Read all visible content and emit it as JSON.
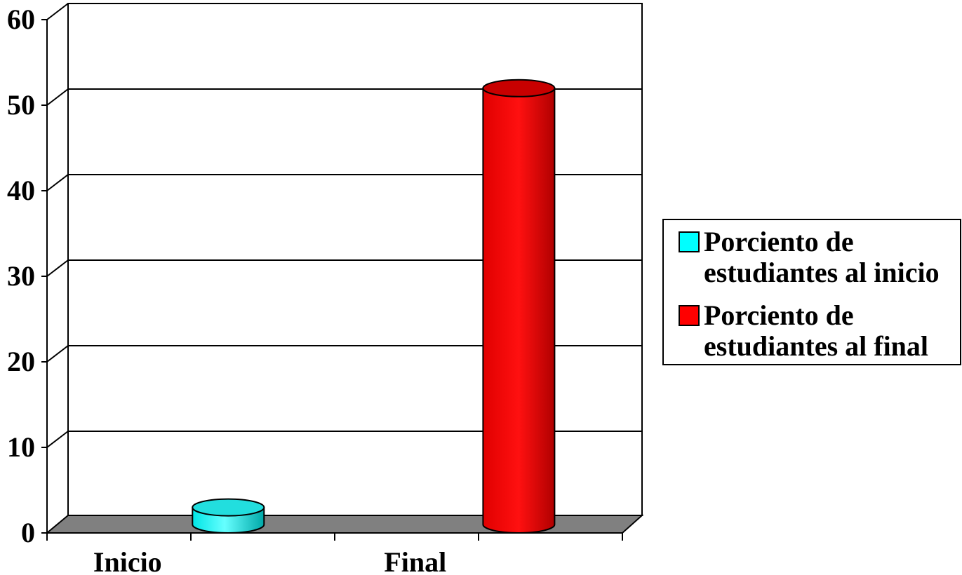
{
  "chart_data": {
    "type": "bar",
    "categories": [
      "Inicio",
      "Final"
    ],
    "series": [
      {
        "name": "Porciento de estudiantes al inicio",
        "values": [
          2,
          null
        ],
        "color": "#00ffff"
      },
      {
        "name": "Porciento de estudiantes al final",
        "values": [
          null,
          51
        ],
        "color": "#ff0000"
      }
    ],
    "yticks": [
      "0",
      "10",
      "20",
      "30",
      "40",
      "50",
      "60"
    ],
    "ylim": [
      0,
      60
    ],
    "grid": true,
    "legend": {
      "placement": "right",
      "items": [
        {
          "line1": "Porciento de",
          "line2": "estudiantes al inicio",
          "color": "#00ffff"
        },
        {
          "line1": "Porciento de",
          "line2": "estudiantes al final",
          "color": "#ff0000"
        }
      ]
    },
    "floor_color": "#808080",
    "style": "3d-cylinder"
  }
}
